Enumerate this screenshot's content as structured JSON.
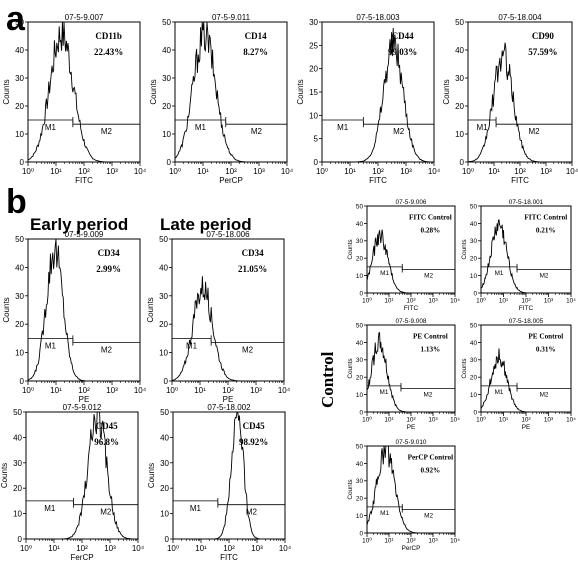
{
  "figure": {
    "label_a": "a",
    "label_b": "b",
    "heading_early": "Early period",
    "heading_late": "Late period",
    "side_label": "Control"
  },
  "chart_data": [
    {
      "type": "histogram",
      "title": "07-5-9.007",
      "marker": "CD11b",
      "percent": "22.43%",
      "xlabel": "FITC",
      "ylabel": "Counts",
      "xscale": "log",
      "xlim": [
        1,
        10000
      ],
      "ylim": [
        0,
        50
      ],
      "xticks": [
        "10⁰",
        "10¹",
        "10²",
        "10³",
        "10⁴"
      ],
      "yticks": [
        "0",
        "10",
        "20",
        "30",
        "40",
        "50"
      ],
      "gates": [
        {
          "label": "M1",
          "range": [
            1,
            40
          ]
        },
        {
          "label": "M2",
          "range": [
            40,
            10000
          ]
        }
      ],
      "peak": {
        "center_log": 1.2,
        "width_log": 0.42,
        "height": 47
      }
    },
    {
      "type": "histogram",
      "title": "07-5-9.011",
      "marker": "CD14",
      "percent": "8.27%",
      "xlabel": "PerCP",
      "ylabel": "Counts",
      "xscale": "log",
      "xlim": [
        1,
        10000
      ],
      "ylim": [
        0,
        50
      ],
      "xticks": [
        "10⁰",
        "10¹",
        "10²",
        "10³",
        "10⁴"
      ],
      "yticks": [
        "0",
        "10",
        "20",
        "30",
        "40",
        "50"
      ],
      "gates": [
        {
          "label": "M1",
          "range": [
            1,
            65
          ]
        },
        {
          "label": "M2",
          "range": [
            65,
            10000
          ]
        }
      ],
      "peak": {
        "center_log": 1.05,
        "width_log": 0.4,
        "height": 47
      }
    },
    {
      "type": "histogram",
      "title": "07-5-18.003",
      "marker": "CD44",
      "percent": "99.03%",
      "xlabel": "FITC",
      "ylabel": "Counts",
      "xscale": "log",
      "xlim": [
        1,
        10000
      ],
      "ylim": [
        0,
        30
      ],
      "xticks": [
        "10⁰",
        "10¹",
        "10²",
        "10³",
        "10⁴"
      ],
      "yticks": [
        "0",
        "5",
        "10",
        "15",
        "20",
        "25",
        "30"
      ],
      "gates": [
        {
          "label": "M1",
          "range": [
            1,
            30
          ]
        },
        {
          "label": "M2",
          "range": [
            30,
            10000
          ]
        }
      ],
      "peak": {
        "center_log": 2.55,
        "width_log": 0.35,
        "height": 26
      }
    },
    {
      "type": "histogram",
      "title": "07-5-18.004",
      "marker": "CD90",
      "percent": "57.59%",
      "xlabel": "FITC",
      "ylabel": "Counts",
      "xscale": "log",
      "xlim": [
        1,
        10000
      ],
      "ylim": [
        0,
        50
      ],
      "xticks": [
        "10⁰",
        "10¹",
        "10²",
        "10³",
        "10⁴"
      ],
      "yticks": [
        "0",
        "10",
        "20",
        "30",
        "40",
        "50"
      ],
      "gates": [
        {
          "label": "M1",
          "range": [
            1,
            12
          ]
        },
        {
          "label": "M2",
          "range": [
            12,
            10000
          ]
        }
      ],
      "peak": {
        "center_log": 1.35,
        "width_log": 0.38,
        "height": 39
      }
    },
    {
      "type": "histogram",
      "title": "07-5-9.009",
      "marker": "CD34",
      "percent": "2.99%",
      "xlabel": "PE",
      "ylabel": "Counts",
      "xscale": "log",
      "xlim": [
        1,
        10000
      ],
      "ylim": [
        0,
        50
      ],
      "xticks": [
        "10⁰",
        "10¹",
        "10²",
        "10³",
        "10⁴"
      ],
      "yticks": [
        "0",
        "10",
        "20",
        "30",
        "40",
        "50"
      ],
      "gates": [
        {
          "label": "M1",
          "range": [
            1,
            40
          ]
        },
        {
          "label": "M2",
          "range": [
            40,
            10000
          ]
        }
      ],
      "peak": {
        "center_log": 0.95,
        "width_log": 0.3,
        "height": 48
      }
    },
    {
      "type": "histogram",
      "title": "07-5-18.006",
      "marker": "CD34",
      "percent": "21.05%",
      "xlabel": "PE",
      "ylabel": "Counts",
      "xscale": "log",
      "xlim": [
        1,
        10000
      ],
      "ylim": [
        0,
        50
      ],
      "xticks": [
        "10⁰",
        "10¹",
        "10²",
        "10³",
        "10⁴"
      ],
      "yticks": [
        "0",
        "10",
        "20",
        "30",
        "40",
        "50"
      ],
      "gates": [
        {
          "label": "M1",
          "range": [
            1,
            25
          ]
        },
        {
          "label": "M2",
          "range": [
            25,
            10000
          ]
        }
      ],
      "peak": {
        "center_log": 1.1,
        "width_log": 0.35,
        "height": 34
      }
    },
    {
      "type": "histogram",
      "title": "07-5-9.012",
      "marker": "CD45",
      "percent": "96.8%",
      "xlabel": "FerCP",
      "ylabel": "Counts",
      "xscale": "log",
      "xlim": [
        1,
        10000
      ],
      "ylim": [
        0,
        50
      ],
      "xticks": [
        "10⁰",
        "10¹",
        "10²",
        "10³",
        "10⁴"
      ],
      "yticks": [
        "0",
        "10",
        "20",
        "30",
        "40",
        "50"
      ],
      "gates": [
        {
          "label": "M1",
          "range": [
            1,
            50
          ]
        },
        {
          "label": "M2",
          "range": [
            50,
            10000
          ]
        }
      ],
      "peak": {
        "center_log": 2.55,
        "width_log": 0.33,
        "height": 50
      }
    },
    {
      "type": "histogram",
      "title": "07-5-18.002",
      "marker": "CD45",
      "percent": "98.92%",
      "xlabel": "FITC",
      "ylabel": "Counts",
      "xscale": "log",
      "xlim": [
        1,
        10000
      ],
      "ylim": [
        0,
        50
      ],
      "xticks": [
        "10⁰",
        "10¹",
        "10²",
        "10³",
        "10⁴"
      ],
      "yticks": [
        "0",
        "10",
        "20",
        "30",
        "40",
        "50"
      ],
      "gates": [
        {
          "label": "M1",
          "range": [
            1,
            40
          ]
        },
        {
          "label": "M2",
          "range": [
            40,
            10000
          ]
        }
      ],
      "peak": {
        "center_log": 2.3,
        "width_log": 0.22,
        "height": 49
      }
    },
    {
      "type": "histogram",
      "title": "07-5-9.006",
      "marker": "FITC Control",
      "percent": "0.28%",
      "xlabel": "FITC",
      "ylabel": "Counts",
      "xscale": "log",
      "xlim": [
        1,
        10000
      ],
      "ylim": [
        0,
        50
      ],
      "xticks": [
        "10⁰",
        "10¹",
        "10²",
        "10³",
        "10⁴"
      ],
      "yticks": [
        "0",
        "10",
        "20",
        "30",
        "40",
        "50"
      ],
      "gates": [
        {
          "label": "M1",
          "range": [
            1,
            40
          ]
        },
        {
          "label": "M2",
          "range": [
            40,
            10000
          ]
        }
      ],
      "peak": {
        "center_log": 0.6,
        "width_log": 0.35,
        "height": 34
      }
    },
    {
      "type": "histogram",
      "title": "07-5-18.001",
      "marker": "FITC Control",
      "percent": "0.21%",
      "xlabel": "FITC",
      "ylabel": "Counts",
      "xscale": "log",
      "xlim": [
        1,
        10000
      ],
      "ylim": [
        0,
        50
      ],
      "xticks": [
        "10⁰",
        "10¹",
        "10²",
        "10³",
        "10⁴"
      ],
      "yticks": [
        "0",
        "10",
        "20",
        "30",
        "40",
        "50"
      ],
      "gates": [
        {
          "label": "M1",
          "range": [
            1,
            40
          ]
        },
        {
          "label": "M2",
          "range": [
            40,
            10000
          ]
        }
      ],
      "peak": {
        "center_log": 0.8,
        "width_log": 0.35,
        "height": 40
      }
    },
    {
      "type": "histogram",
      "title": "07-5-9.008",
      "marker": "PE Control",
      "percent": "1.13%",
      "xlabel": "PE",
      "ylabel": "Counts",
      "xscale": "log",
      "xlim": [
        1,
        10000
      ],
      "ylim": [
        0,
        50
      ],
      "xticks": [
        "10⁰",
        "10¹",
        "10²",
        "10³",
        "10⁴"
      ],
      "yticks": [
        "0",
        "10",
        "20",
        "30",
        "40",
        "50"
      ],
      "gates": [
        {
          "label": "M1",
          "range": [
            1,
            35
          ]
        },
        {
          "label": "M2",
          "range": [
            35,
            10000
          ]
        }
      ],
      "peak": {
        "center_log": 0.55,
        "width_log": 0.35,
        "height": 41
      }
    },
    {
      "type": "histogram",
      "title": "07-5-18.005",
      "marker": "PE Control",
      "percent": "0.31%",
      "xlabel": "PE",
      "ylabel": "Counts",
      "xscale": "log",
      "xlim": [
        1,
        10000
      ],
      "ylim": [
        0,
        50
      ],
      "xticks": [
        "10⁰",
        "10¹",
        "10²",
        "10³",
        "10⁴"
      ],
      "yticks": [
        "0",
        "10",
        "20",
        "30",
        "40",
        "50"
      ],
      "gates": [
        {
          "label": "M1",
          "range": [
            1,
            40
          ]
        },
        {
          "label": "M2",
          "range": [
            40,
            10000
          ]
        }
      ],
      "peak": {
        "center_log": 0.8,
        "width_log": 0.35,
        "height": 33
      }
    },
    {
      "type": "histogram",
      "title": "07-5-9.010",
      "marker": "PerCP Control",
      "percent": "0.92%",
      "xlabel": "PerCP",
      "ylabel": "Counts",
      "xscale": "log",
      "xlim": [
        1,
        10000
      ],
      "ylim": [
        0,
        50
      ],
      "xticks": [
        "10⁰",
        "10¹",
        "10²",
        "10³",
        "10⁴"
      ],
      "yticks": [
        "0",
        "10",
        "20",
        "30",
        "40",
        "50"
      ],
      "gates": [
        {
          "label": "M1",
          "range": [
            1,
            40
          ]
        },
        {
          "label": "M2",
          "range": [
            40,
            10000
          ]
        }
      ],
      "peak": {
        "center_log": 0.85,
        "width_log": 0.4,
        "height": 49
      }
    }
  ]
}
